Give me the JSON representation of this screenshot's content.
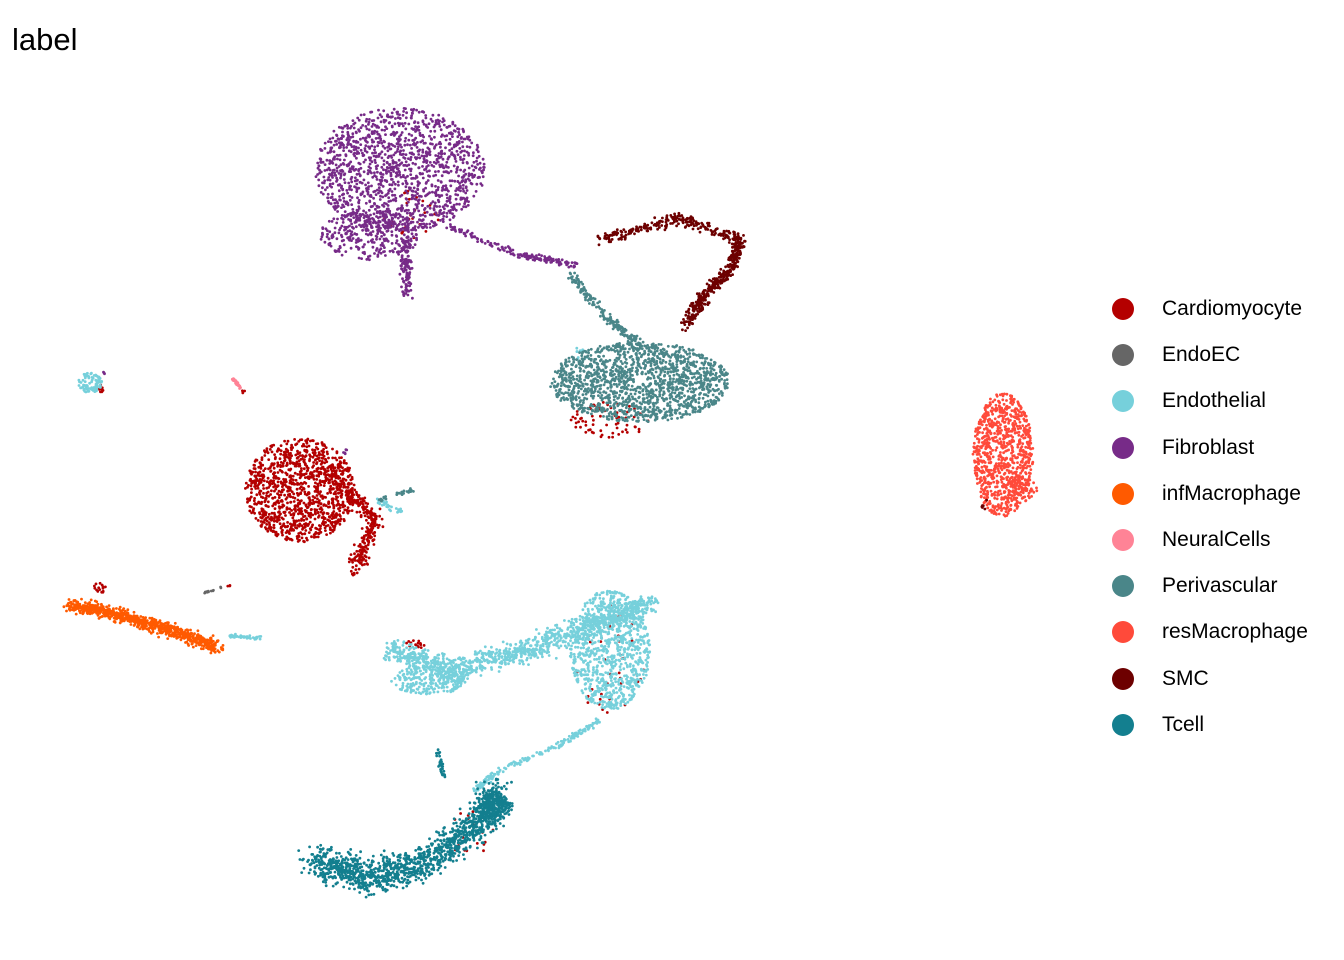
{
  "chart_data": {
    "type": "scatter",
    "title": "label",
    "xlabel": "",
    "ylabel": "",
    "grid": false,
    "axes_visible": false,
    "legend_position": "right",
    "series": [
      {
        "name": "Cardiomyocyte",
        "color": "#B40000"
      },
      {
        "name": "EndoEC",
        "color": "#666666"
      },
      {
        "name": "Endothelial",
        "color": "#76D0DB"
      },
      {
        "name": "Fibroblast",
        "color": "#772B88"
      },
      {
        "name": "infMacrophage",
        "color": "#FF5A00"
      },
      {
        "name": "NeuralCells",
        "color": "#FF8396"
      },
      {
        "name": "Perivascular",
        "color": "#4A8689"
      },
      {
        "name": "resMacrophage",
        "color": "#FF4A3A"
      },
      {
        "name": "SMC",
        "color": "#6D0000"
      },
      {
        "name": "Tcell",
        "color": "#137F8F"
      }
    ]
  }
}
